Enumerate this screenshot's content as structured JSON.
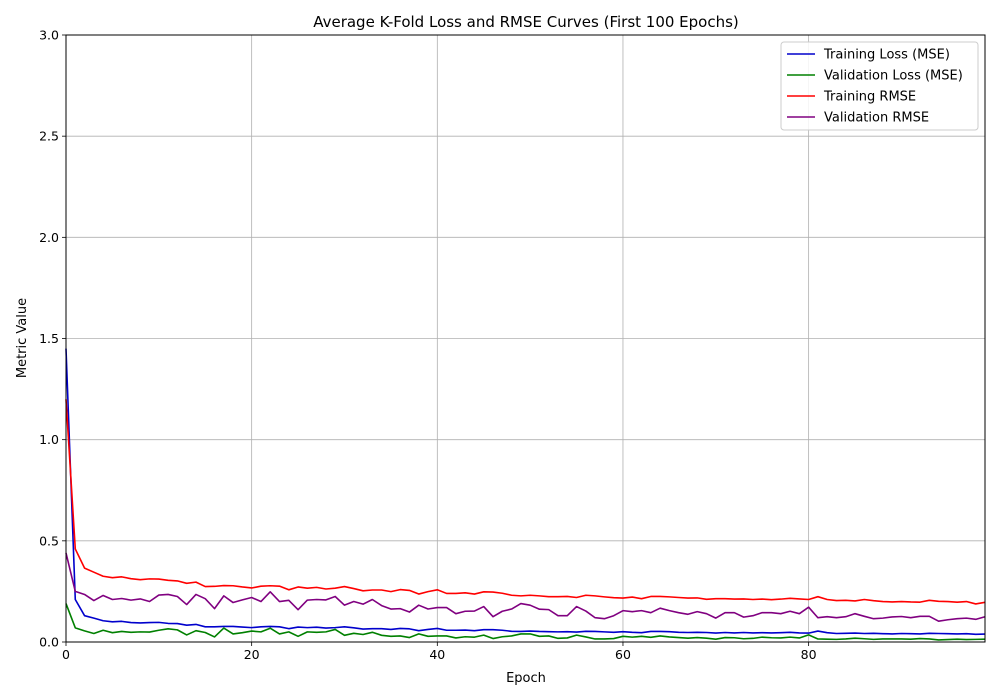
{
  "chart_data": {
    "type": "line",
    "title": "Average K-Fold Loss and RMSE Curves (First 100 Epochs)",
    "xlabel": "Epoch",
    "ylabel": "Metric Value",
    "xlim": [
      0,
      99
    ],
    "ylim": [
      0,
      3.0
    ],
    "xticks": [
      0,
      20,
      40,
      60,
      80
    ],
    "xtick_labels": [
      "0",
      "20",
      "40",
      "60",
      "80"
    ],
    "yticks": [
      0.0,
      0.5,
      1.0,
      1.5,
      2.0,
      2.5,
      3.0
    ],
    "ytick_labels": [
      "0.0",
      "0.5",
      "1.0",
      "1.5",
      "2.0",
      "2.5",
      "3.0"
    ],
    "grid": true,
    "legend_position": "top-right",
    "series": [
      {
        "name": "Training Loss (MSE)",
        "color": "#0000cc",
        "values": [
          1.45,
          0.21,
          0.13,
          0.118,
          0.105,
          0.1,
          0.102,
          0.096,
          0.094,
          0.096,
          0.097,
          0.092,
          0.091,
          0.083,
          0.087,
          0.075,
          0.075,
          0.077,
          0.077,
          0.074,
          0.071,
          0.075,
          0.077,
          0.075,
          0.066,
          0.074,
          0.071,
          0.073,
          0.069,
          0.071,
          0.075,
          0.07,
          0.064,
          0.066,
          0.066,
          0.062,
          0.067,
          0.065,
          0.056,
          0.062,
          0.067,
          0.058,
          0.058,
          0.059,
          0.056,
          0.061,
          0.061,
          0.058,
          0.053,
          0.052,
          0.054,
          0.052,
          0.051,
          0.05,
          0.051,
          0.049,
          0.053,
          0.052,
          0.05,
          0.048,
          0.051,
          0.048,
          0.046,
          0.052,
          0.052,
          0.051,
          0.048,
          0.047,
          0.048,
          0.047,
          0.044,
          0.047,
          0.045,
          0.047,
          0.045,
          0.046,
          0.045,
          0.046,
          0.048,
          0.045,
          0.044,
          0.054,
          0.046,
          0.042,
          0.043,
          0.044,
          0.042,
          0.043,
          0.041,
          0.04,
          0.042,
          0.041,
          0.04,
          0.043,
          0.042,
          0.041,
          0.04,
          0.041,
          0.038,
          0.039
        ]
      },
      {
        "name": "Validation Loss (MSE)",
        "color": "#008000",
        "values": [
          0.19,
          0.07,
          0.055,
          0.042,
          0.058,
          0.046,
          0.052,
          0.048,
          0.05,
          0.049,
          0.058,
          0.065,
          0.06,
          0.035,
          0.056,
          0.047,
          0.025,
          0.069,
          0.04,
          0.046,
          0.054,
          0.05,
          0.068,
          0.04,
          0.05,
          0.028,
          0.05,
          0.048,
          0.05,
          0.062,
          0.033,
          0.043,
          0.037,
          0.048,
          0.033,
          0.028,
          0.03,
          0.022,
          0.04,
          0.028,
          0.03,
          0.03,
          0.02,
          0.026,
          0.024,
          0.034,
          0.017,
          0.026,
          0.03,
          0.04,
          0.04,
          0.028,
          0.03,
          0.018,
          0.02,
          0.034,
          0.025,
          0.015,
          0.015,
          0.017,
          0.028,
          0.024,
          0.028,
          0.023,
          0.03,
          0.025,
          0.022,
          0.019,
          0.022,
          0.019,
          0.014,
          0.022,
          0.021,
          0.016,
          0.018,
          0.024,
          0.021,
          0.02,
          0.024,
          0.02,
          0.035,
          0.015,
          0.014,
          0.013,
          0.015,
          0.019,
          0.016,
          0.013,
          0.015,
          0.015,
          0.015,
          0.014,
          0.017,
          0.015,
          0.01,
          0.012,
          0.014,
          0.012,
          0.013,
          0.014
        ]
      },
      {
        "name": "Training RMSE",
        "color": "#ff0000",
        "values": [
          1.2,
          0.46,
          0.365,
          0.345,
          0.325,
          0.318,
          0.322,
          0.313,
          0.308,
          0.312,
          0.311,
          0.305,
          0.302,
          0.29,
          0.296,
          0.274,
          0.275,
          0.279,
          0.278,
          0.272,
          0.267,
          0.276,
          0.278,
          0.276,
          0.258,
          0.272,
          0.266,
          0.27,
          0.262,
          0.266,
          0.274,
          0.264,
          0.253,
          0.257,
          0.257,
          0.249,
          0.259,
          0.255,
          0.237,
          0.249,
          0.258,
          0.24,
          0.24,
          0.243,
          0.237,
          0.248,
          0.247,
          0.241,
          0.231,
          0.228,
          0.231,
          0.228,
          0.224,
          0.224,
          0.225,
          0.22,
          0.231,
          0.228,
          0.223,
          0.219,
          0.217,
          0.222,
          0.214,
          0.225,
          0.225,
          0.223,
          0.22,
          0.217,
          0.218,
          0.211,
          0.214,
          0.214,
          0.212,
          0.213,
          0.21,
          0.212,
          0.209,
          0.212,
          0.216,
          0.213,
          0.21,
          0.224,
          0.21,
          0.205,
          0.206,
          0.203,
          0.21,
          0.204,
          0.2,
          0.198,
          0.2,
          0.198,
          0.197,
          0.206,
          0.201,
          0.2,
          0.197,
          0.2,
          0.188,
          0.196
        ]
      },
      {
        "name": "Validation RMSE",
        "color": "#800080",
        "values": [
          0.44,
          0.25,
          0.235,
          0.205,
          0.23,
          0.21,
          0.215,
          0.207,
          0.213,
          0.2,
          0.232,
          0.235,
          0.225,
          0.185,
          0.235,
          0.214,
          0.165,
          0.228,
          0.195,
          0.208,
          0.22,
          0.2,
          0.248,
          0.2,
          0.206,
          0.16,
          0.207,
          0.21,
          0.208,
          0.225,
          0.182,
          0.2,
          0.187,
          0.21,
          0.18,
          0.163,
          0.165,
          0.148,
          0.182,
          0.163,
          0.17,
          0.17,
          0.14,
          0.152,
          0.153,
          0.175,
          0.125,
          0.152,
          0.163,
          0.19,
          0.182,
          0.162,
          0.16,
          0.13,
          0.13,
          0.175,
          0.153,
          0.12,
          0.115,
          0.13,
          0.155,
          0.15,
          0.155,
          0.145,
          0.167,
          0.155,
          0.145,
          0.137,
          0.15,
          0.14,
          0.118,
          0.145,
          0.145,
          0.123,
          0.13,
          0.145,
          0.145,
          0.14,
          0.152,
          0.14,
          0.172,
          0.12,
          0.125,
          0.12,
          0.125,
          0.14,
          0.127,
          0.115,
          0.118,
          0.124,
          0.126,
          0.12,
          0.127,
          0.127,
          0.103,
          0.11,
          0.115,
          0.118,
          0.112,
          0.125
        ]
      }
    ]
  }
}
